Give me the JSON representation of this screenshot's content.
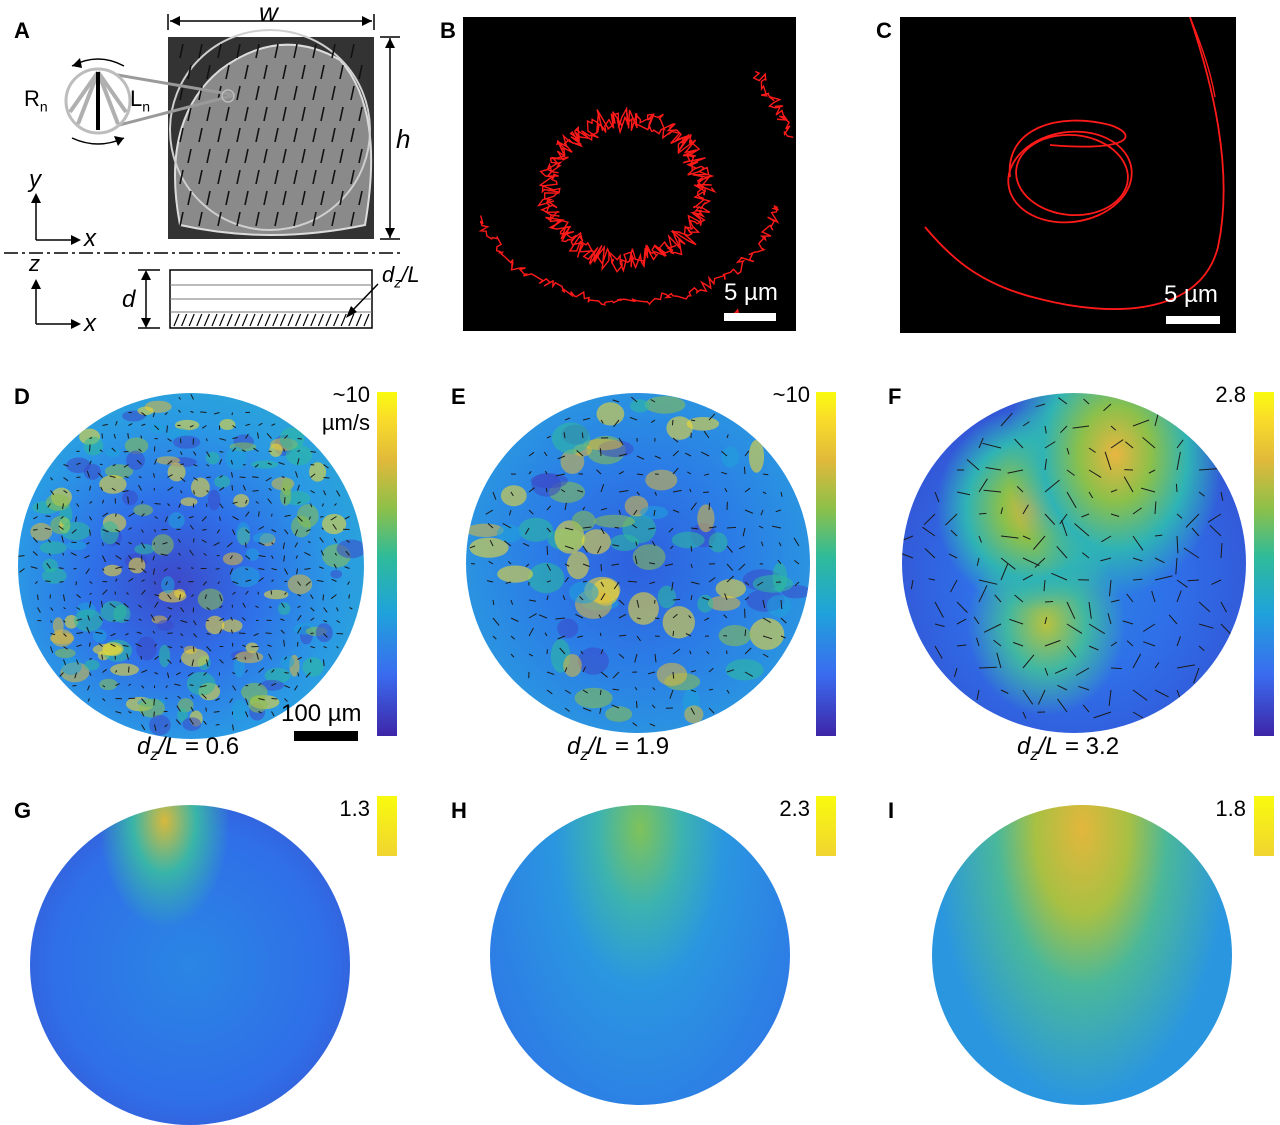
{
  "panels": {
    "A": {
      "label": "A",
      "w_label": "w",
      "h_label": "h",
      "d_label": "d",
      "dz_label": "d",
      "dz_sub": "z",
      "dz_rest": "/L",
      "rn_label": "R",
      "rn_sub": "n",
      "ln_label": "L",
      "ln_sub": "n",
      "y_axis": "y",
      "x_axis_top": "x",
      "z_axis": "z",
      "x_axis_bottom": "x"
    },
    "B": {
      "label": "B",
      "scale": "5 µm"
    },
    "C": {
      "label": "C",
      "scale": "5 µm"
    },
    "D": {
      "label": "D",
      "cbar_max": "~10",
      "cbar_unit": "µm/s",
      "scale": "100 µm",
      "caption_main": "d",
      "caption_sub": "z",
      "caption_rest": "/L",
      "caption_value": " = 0.6"
    },
    "E": {
      "label": "E",
      "cbar_max": "~10",
      "caption_main": "d",
      "caption_sub": "z",
      "caption_rest": "/L",
      "caption_value": " = 1.9"
    },
    "F": {
      "label": "F",
      "cbar_max": "2.8",
      "caption_main": "d",
      "caption_sub": "z",
      "caption_rest": "/L",
      "caption_value": " = 3.2"
    },
    "G": {
      "label": "G",
      "cbar_max": "1.3"
    },
    "H": {
      "label": "H",
      "cbar_max": "2.3"
    },
    "I": {
      "label": "I",
      "cbar_max": "1.8"
    }
  },
  "colors": {
    "trajectory": "#ff1a1a",
    "field_low": "#3e26a8",
    "field_mid": "#2ebb9a",
    "field_high": "#f9fb0e"
  }
}
